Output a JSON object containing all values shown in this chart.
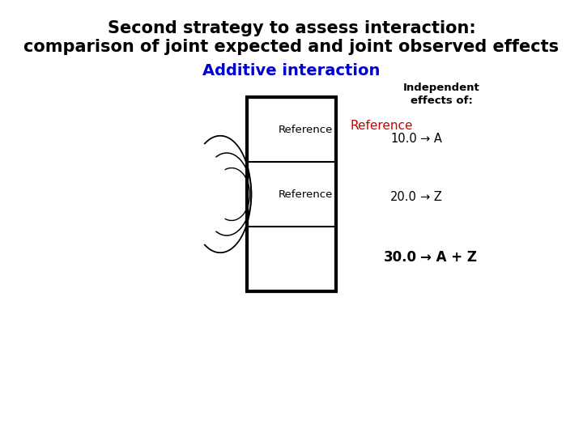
{
  "title_line1": "Second strategy to assess interaction:",
  "title_line2": "comparison of joint expected and joint observed effects",
  "subtitle": "Additive interaction",
  "subtitle_color": "#0000CC",
  "title_color": "#000000",
  "background_color": "#FFFFFF",
  "ref_label1": "Reference",
  "ref_label2": "Reference",
  "ref_col_label": "Reference",
  "values": [
    "10.0",
    "20.0",
    "30.0"
  ],
  "values_bold": [
    false,
    false,
    true
  ],
  "arrows": [
    "→ A",
    "→ Z",
    "→ A + Z"
  ],
  "indep_line1": "Independent",
  "indep_line2": "effects of:"
}
